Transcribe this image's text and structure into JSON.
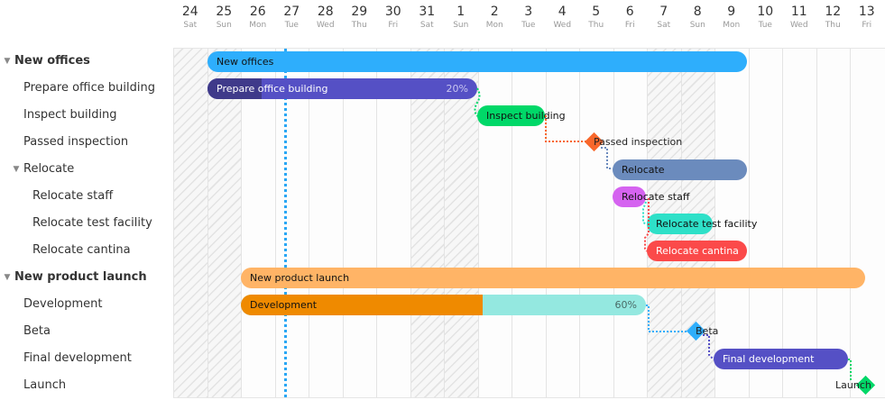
{
  "timeline": {
    "days": [
      {
        "num": "24",
        "dow": "Sat",
        "weekend": true
      },
      {
        "num": "25",
        "dow": "Sun",
        "weekend": true
      },
      {
        "num": "26",
        "dow": "Mon",
        "weekend": false
      },
      {
        "num": "27",
        "dow": "Tue",
        "weekend": false
      },
      {
        "num": "28",
        "dow": "Wed",
        "weekend": false
      },
      {
        "num": "29",
        "dow": "Thu",
        "weekend": false
      },
      {
        "num": "30",
        "dow": "Fri",
        "weekend": false
      },
      {
        "num": "31",
        "dow": "Sat",
        "weekend": true
      },
      {
        "num": "1",
        "dow": "Sun",
        "weekend": true
      },
      {
        "num": "2",
        "dow": "Mon",
        "weekend": false
      },
      {
        "num": "3",
        "dow": "Tue",
        "weekend": false
      },
      {
        "num": "4",
        "dow": "Wed",
        "weekend": false
      },
      {
        "num": "5",
        "dow": "Thu",
        "weekend": false
      },
      {
        "num": "6",
        "dow": "Fri",
        "weekend": false
      },
      {
        "num": "7",
        "dow": "Sat",
        "weekend": true
      },
      {
        "num": "8",
        "dow": "Sun",
        "weekend": true
      },
      {
        "num": "9",
        "dow": "Mon",
        "weekend": false
      },
      {
        "num": "10",
        "dow": "Tue",
        "weekend": false
      },
      {
        "num": "11",
        "dow": "Wed",
        "weekend": false
      },
      {
        "num": "12",
        "dow": "Thu",
        "weekend": false
      },
      {
        "num": "13",
        "dow": "Fri",
        "weekend": false
      }
    ],
    "today_label": "Tue 27"
  },
  "tree": {
    "rows": [
      {
        "label": "New offices",
        "level": 0,
        "group": true,
        "expanded": true
      },
      {
        "label": "Prepare office building",
        "level": 1
      },
      {
        "label": "Inspect building",
        "level": 1
      },
      {
        "label": "Passed inspection",
        "level": 1
      },
      {
        "label": "Relocate",
        "level": 1,
        "group": true,
        "expanded": true
      },
      {
        "label": "Relocate staff",
        "level": 2
      },
      {
        "label": "Relocate test facility",
        "level": 2
      },
      {
        "label": "Relocate cantina",
        "level": 2
      },
      {
        "label": "New product launch",
        "level": 0,
        "group": true,
        "expanded": true
      },
      {
        "label": "Development",
        "level": 1
      },
      {
        "label": "Beta",
        "level": 1
      },
      {
        "label": "Final development",
        "level": 1
      },
      {
        "label": "Launch",
        "level": 1
      }
    ]
  },
  "bars": {
    "new_offices": {
      "label": "New offices",
      "color": "#2eaefc"
    },
    "prepare": {
      "label": "Prepare office building",
      "percent": "20%",
      "color": "#5550c5",
      "progress_color": "#3f3a8a"
    },
    "inspect": {
      "label": "Inspect building",
      "color": "#00d868"
    },
    "passed": {
      "label": "Passed inspection",
      "color": "#f8672b"
    },
    "relocate": {
      "label": "Relocate",
      "color": "#6b8bbd"
    },
    "relocate_staff": {
      "label": "Relocate staff",
      "color": "#d563f0"
    },
    "relocate_test": {
      "label": "Relocate test facility",
      "color": "#2ee0c8"
    },
    "relocate_cantina": {
      "label": "Relocate cantina",
      "color": "#fb4a4a"
    },
    "product_launch": {
      "label": "New product launch",
      "color": "#ffb466"
    },
    "development": {
      "label": "Development",
      "percent": "60%",
      "color": "#94e8e0",
      "progress_color": "#ef8a00"
    },
    "beta": {
      "label": "Beta",
      "color": "#2eaefc"
    },
    "final_dev": {
      "label": "Final development",
      "color": "#5550c5"
    },
    "launch": {
      "label": "Launch",
      "color": "#00d868"
    }
  }
}
